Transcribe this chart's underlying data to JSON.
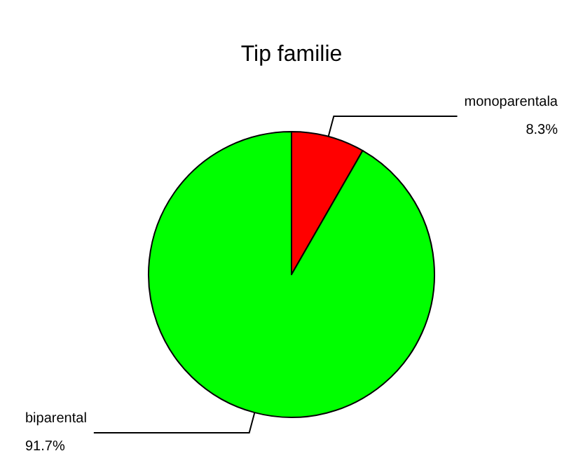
{
  "chart_data": {
    "type": "pie",
    "title": "Tip familie",
    "categories": [
      "monoparentala",
      "biparental"
    ],
    "values": [
      8.3,
      91.7
    ],
    "colors": [
      "#ff0000",
      "#00ff00"
    ],
    "value_labels": [
      "8.3%",
      "91.7%"
    ],
    "legend": false
  }
}
